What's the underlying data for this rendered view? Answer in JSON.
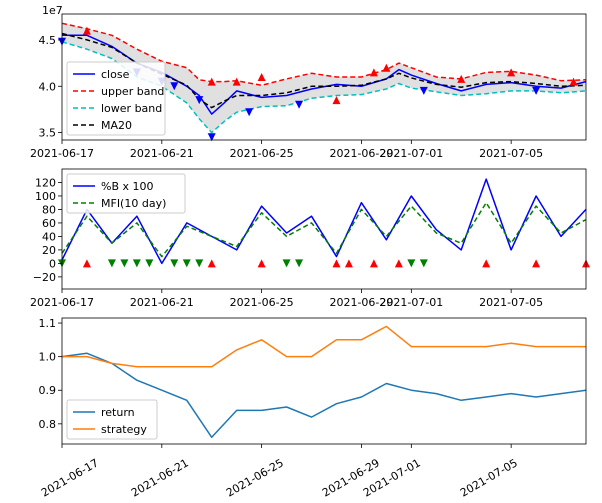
{
  "figure": {
    "background": "#ffffff"
  },
  "chart_data": [
    {
      "type": "line",
      "title": "",
      "xlabel": "",
      "ylabel": "",
      "offset_text": "1e7",
      "xlim": [
        "2021-06-17",
        "2021-07-08"
      ],
      "ylim": [
        3.42,
        4.78
      ],
      "x_ticks": [
        {
          "x": "2021-06-17",
          "label": "2021-06-17"
        },
        {
          "x": "2021-06-21",
          "label": "2021-06-21"
        },
        {
          "x": "2021-06-25",
          "label": "2021-06-25"
        },
        {
          "x": "2021-06-29",
          "label": "2021-06-29"
        },
        {
          "x": "2021-07-01",
          "label": "2021-07-01"
        },
        {
          "x": "2021-07-05",
          "label": "2021-07-05"
        }
      ],
      "y_ticks": [
        {
          "v": 3.5,
          "label": "3.5"
        },
        {
          "v": 4.0,
          "label": "4.0"
        },
        {
          "v": 4.5,
          "label": "4.5"
        }
      ],
      "legend": {
        "position": "lower-left",
        "entries": [
          {
            "label": "close",
            "color": "#0000ff",
            "style": "solid"
          },
          {
            "label": "upper band",
            "color": "#ff0000",
            "style": "dashed"
          },
          {
            "label": "lower band",
            "color": "#00bfbf",
            "style": "dashed"
          },
          {
            "label": "MA20",
            "color": "#000000",
            "style": "dashed"
          }
        ]
      },
      "x": [
        "2021-06-17",
        "2021-06-18",
        "2021-06-19",
        "2021-06-20",
        "2021-06-21",
        "2021-06-22",
        "2021-06-22T12:00",
        "2021-06-23",
        "2021-06-23T12:00",
        "2021-06-24",
        "2021-06-25",
        "2021-06-26",
        "2021-06-27",
        "2021-06-28",
        "2021-06-29",
        "2021-06-30",
        "2021-06-30T12:00",
        "2021-07-01",
        "2021-07-02",
        "2021-07-03",
        "2021-07-04",
        "2021-07-05",
        "2021-07-06",
        "2021-07-07",
        "2021-07-08"
      ],
      "series": [
        {
          "name": "close",
          "color": "#0000ff",
          "values": [
            4.55,
            4.55,
            4.43,
            4.25,
            4.15,
            4.0,
            3.9,
            3.7,
            3.82,
            3.95,
            3.88,
            3.9,
            3.97,
            4.02,
            4.0,
            4.08,
            4.18,
            4.12,
            4.03,
            3.95,
            4.02,
            4.04,
            4.0,
            3.98,
            4.05
          ]
        },
        {
          "name": "upper band",
          "color": "#ff0000",
          "values": [
            4.68,
            4.62,
            4.55,
            4.4,
            4.27,
            4.2,
            4.07,
            4.05,
            4.05,
            4.06,
            4.01,
            4.08,
            4.14,
            4.1,
            4.1,
            4.18,
            4.25,
            4.2,
            4.1,
            4.08,
            4.15,
            4.16,
            4.12,
            4.06,
            4.07
          ]
        },
        {
          "name": "lower band",
          "color": "#00bfbf",
          "values": [
            4.48,
            4.4,
            4.3,
            4.1,
            4.0,
            3.82,
            3.65,
            3.5,
            3.62,
            3.72,
            3.78,
            3.79,
            3.87,
            3.9,
            3.91,
            3.97,
            4.03,
            3.98,
            3.94,
            3.9,
            3.92,
            3.95,
            3.95,
            3.93,
            3.95
          ]
        },
        {
          "name": "MA20",
          "color": "#000000",
          "values": [
            4.57,
            4.5,
            4.42,
            4.25,
            4.13,
            4.01,
            3.86,
            3.77,
            3.84,
            3.9,
            3.9,
            3.93,
            4.0,
            4.0,
            4.01,
            4.08,
            4.14,
            4.09,
            4.02,
            3.99,
            4.04,
            4.05,
            4.03,
            4.0,
            4.01
          ]
        }
      ],
      "markers": [
        {
          "x": "2021-06-17",
          "y": 4.48,
          "kind": "sell",
          "color": "#0000ff"
        },
        {
          "x": "2021-06-18",
          "y": 4.6,
          "kind": "buy",
          "color": "#ff0000"
        },
        {
          "x": "2021-06-20",
          "y": 4.15,
          "kind": "sell",
          "color": "#0000ff"
        },
        {
          "x": "2021-06-21",
          "y": 4.05,
          "kind": "sell",
          "color": "#0000ff"
        },
        {
          "x": "2021-06-21T12:00",
          "y": 4.0,
          "kind": "sell",
          "color": "#0000ff"
        },
        {
          "x": "2021-06-22T12:00",
          "y": 3.85,
          "kind": "sell",
          "color": "#0000ff"
        },
        {
          "x": "2021-06-23",
          "y": 3.45,
          "kind": "sell",
          "color": "#0000ff"
        },
        {
          "x": "2021-06-23",
          "y": 4.05,
          "kind": "buy",
          "color": "#ff0000"
        },
        {
          "x": "2021-06-24",
          "y": 4.05,
          "kind": "buy",
          "color": "#ff0000"
        },
        {
          "x": "2021-06-24T12:00",
          "y": 3.72,
          "kind": "sell",
          "color": "#0000ff"
        },
        {
          "x": "2021-06-25",
          "y": 4.1,
          "kind": "buy",
          "color": "#ff0000"
        },
        {
          "x": "2021-06-26T12:00",
          "y": 3.8,
          "kind": "sell",
          "color": "#0000ff"
        },
        {
          "x": "2021-06-28",
          "y": 3.85,
          "kind": "buy",
          "color": "#ff0000"
        },
        {
          "x": "2021-06-29T12:00",
          "y": 4.15,
          "kind": "buy",
          "color": "#ff0000"
        },
        {
          "x": "2021-06-30",
          "y": 4.2,
          "kind": "buy",
          "color": "#ff0000"
        },
        {
          "x": "2021-07-01T12:00",
          "y": 3.95,
          "kind": "sell",
          "color": "#0000ff"
        },
        {
          "x": "2021-07-03",
          "y": 4.08,
          "kind": "buy",
          "color": "#ff0000"
        },
        {
          "x": "2021-07-05",
          "y": 4.15,
          "kind": "buy",
          "color": "#ff0000"
        },
        {
          "x": "2021-07-06",
          "y": 3.95,
          "kind": "sell",
          "color": "#0000ff"
        },
        {
          "x": "2021-07-07T12:00",
          "y": 4.05,
          "kind": "buy",
          "color": "#ff0000"
        }
      ],
      "band_fill": "#e0e0e0"
    },
    {
      "type": "line",
      "title": "",
      "xlabel": "",
      "ylabel": "",
      "xlim": [
        "2021-06-17",
        "2021-07-08"
      ],
      "ylim": [
        -38,
        140
      ],
      "x_ticks": [
        {
          "x": "2021-06-17",
          "label": "2021-06-17"
        },
        {
          "x": "2021-06-21",
          "label": "2021-06-21"
        },
        {
          "x": "2021-06-25",
          "label": "2021-06-25"
        },
        {
          "x": "2021-06-29",
          "label": "2021-06-29"
        },
        {
          "x": "2021-07-01",
          "label": "2021-07-01"
        },
        {
          "x": "2021-07-05",
          "label": "2021-07-05"
        }
      ],
      "y_ticks": [
        {
          "v": -20,
          "label": "−20"
        },
        {
          "v": 0,
          "label": "0"
        },
        {
          "v": 20,
          "label": "20"
        },
        {
          "v": 40,
          "label": "40"
        },
        {
          "v": 60,
          "label": "60"
        },
        {
          "v": 80,
          "label": "80"
        },
        {
          "v": 100,
          "label": "100"
        },
        {
          "v": 120,
          "label": "120"
        }
      ],
      "legend": {
        "position": "top-left",
        "entries": [
          {
            "label": "%B x 100",
            "color": "#0000ff",
            "style": "solid"
          },
          {
            "label": "MFI(10 day)",
            "color": "#008000",
            "style": "dashed"
          }
        ]
      },
      "x": [
        "2021-06-17",
        "2021-06-18",
        "2021-06-19",
        "2021-06-20",
        "2021-06-21",
        "2021-06-22",
        "2021-06-23",
        "2021-06-24",
        "2021-06-25",
        "2021-06-26",
        "2021-06-27",
        "2021-06-28",
        "2021-06-29",
        "2021-06-30",
        "2021-07-01",
        "2021-07-02",
        "2021-07-03",
        "2021-07-04",
        "2021-07-05",
        "2021-07-06",
        "2021-07-07",
        "2021-07-08"
      ],
      "series": [
        {
          "name": "%B x 100",
          "color": "#0000ff",
          "values": [
            5,
            80,
            30,
            70,
            0,
            60,
            40,
            20,
            85,
            45,
            70,
            10,
            90,
            35,
            100,
            50,
            20,
            125,
            20,
            100,
            40,
            80
          ]
        },
        {
          "name": "MFI(10 day)",
          "color": "#008000",
          "values": [
            15,
            70,
            30,
            60,
            10,
            55,
            40,
            25,
            75,
            40,
            60,
            15,
            80,
            40,
            85,
            45,
            30,
            90,
            30,
            85,
            45,
            65
          ]
        }
      ],
      "markers": [
        {
          "x": "2021-06-17",
          "y": 0,
          "kind": "sell",
          "color": "#008000"
        },
        {
          "x": "2021-06-18",
          "y": 0,
          "kind": "buy",
          "color": "#ff0000"
        },
        {
          "x": "2021-06-19",
          "y": 0,
          "kind": "sell",
          "color": "#008000"
        },
        {
          "x": "2021-06-19T12:00",
          "y": 0,
          "kind": "sell",
          "color": "#008000"
        },
        {
          "x": "2021-06-20",
          "y": 0,
          "kind": "sell",
          "color": "#008000"
        },
        {
          "x": "2021-06-20T12:00",
          "y": 0,
          "kind": "sell",
          "color": "#008000"
        },
        {
          "x": "2021-06-21T12:00",
          "y": 0,
          "kind": "sell",
          "color": "#008000"
        },
        {
          "x": "2021-06-22",
          "y": 0,
          "kind": "sell",
          "color": "#008000"
        },
        {
          "x": "2021-06-22T12:00",
          "y": 0,
          "kind": "sell",
          "color": "#008000"
        },
        {
          "x": "2021-06-23",
          "y": 0,
          "kind": "buy",
          "color": "#ff0000"
        },
        {
          "x": "2021-06-25",
          "y": 0,
          "kind": "buy",
          "color": "#ff0000"
        },
        {
          "x": "2021-06-26",
          "y": 0,
          "kind": "sell",
          "color": "#008000"
        },
        {
          "x": "2021-06-26T12:00",
          "y": 0,
          "kind": "sell",
          "color": "#008000"
        },
        {
          "x": "2021-06-28",
          "y": 0,
          "kind": "buy",
          "color": "#ff0000"
        },
        {
          "x": "2021-06-28T12:00",
          "y": 0,
          "kind": "buy",
          "color": "#ff0000"
        },
        {
          "x": "2021-06-29T12:00",
          "y": 0,
          "kind": "buy",
          "color": "#ff0000"
        },
        {
          "x": "2021-06-30T12:00",
          "y": 0,
          "kind": "buy",
          "color": "#ff0000"
        },
        {
          "x": "2021-07-01",
          "y": 0,
          "kind": "sell",
          "color": "#008000"
        },
        {
          "x": "2021-07-01T12:00",
          "y": 0,
          "kind": "sell",
          "color": "#008000"
        },
        {
          "x": "2021-07-04",
          "y": 0,
          "kind": "buy",
          "color": "#ff0000"
        },
        {
          "x": "2021-07-06",
          "y": 0,
          "kind": "buy",
          "color": "#ff0000"
        },
        {
          "x": "2021-07-08",
          "y": 0,
          "kind": "buy",
          "color": "#ff0000"
        }
      ]
    },
    {
      "type": "line",
      "title": "",
      "xlabel": "",
      "ylabel": "",
      "xlim": [
        "2021-06-17",
        "2021-07-08"
      ],
      "ylim": [
        0.74,
        1.115
      ],
      "x_ticks": [
        {
          "x": "2021-06-17",
          "label": "2021-06-17"
        },
        {
          "x": "2021-06-21",
          "label": "2021-06-21"
        },
        {
          "x": "2021-06-25",
          "label": "2021-06-25"
        },
        {
          "x": "2021-06-29",
          "label": "2021-06-29"
        },
        {
          "x": "2021-07-01",
          "label": "2021-07-01"
        },
        {
          "x": "2021-07-05",
          "label": "2021-07-05"
        }
      ],
      "x_tick_rotation": 30,
      "y_ticks": [
        {
          "v": 0.8,
          "label": "0.8"
        },
        {
          "v": 0.9,
          "label": "0.9"
        },
        {
          "v": 1.0,
          "label": "1.0"
        },
        {
          "v": 1.1,
          "label": "1.1"
        }
      ],
      "legend": {
        "position": "lower-left",
        "entries": [
          {
            "label": "return",
            "color": "#1f77b4",
            "style": "solid"
          },
          {
            "label": "strategy",
            "color": "#ff7f0e",
            "style": "solid"
          }
        ]
      },
      "x": [
        "2021-06-17",
        "2021-06-18",
        "2021-06-19",
        "2021-06-20",
        "2021-06-21",
        "2021-06-22",
        "2021-06-23",
        "2021-06-24",
        "2021-06-25",
        "2021-06-26",
        "2021-06-27",
        "2021-06-28",
        "2021-06-29",
        "2021-06-30",
        "2021-07-01",
        "2021-07-02",
        "2021-07-03",
        "2021-07-04",
        "2021-07-05",
        "2021-07-06",
        "2021-07-07",
        "2021-07-08"
      ],
      "series": [
        {
          "name": "return",
          "color": "#1f77b4",
          "values": [
            1.0,
            1.01,
            0.98,
            0.93,
            0.9,
            0.87,
            0.76,
            0.84,
            0.84,
            0.85,
            0.82,
            0.86,
            0.88,
            0.92,
            0.9,
            0.89,
            0.87,
            0.88,
            0.89,
            0.88,
            0.89,
            0.9
          ]
        },
        {
          "name": "strategy",
          "color": "#ff7f0e",
          "values": [
            1.0,
            1.0,
            0.98,
            0.97,
            0.97,
            0.97,
            0.97,
            1.02,
            1.05,
            1.0,
            1.0,
            1.05,
            1.05,
            1.09,
            1.03,
            1.03,
            1.03,
            1.03,
            1.04,
            1.03,
            1.03,
            1.03
          ]
        }
      ]
    }
  ]
}
